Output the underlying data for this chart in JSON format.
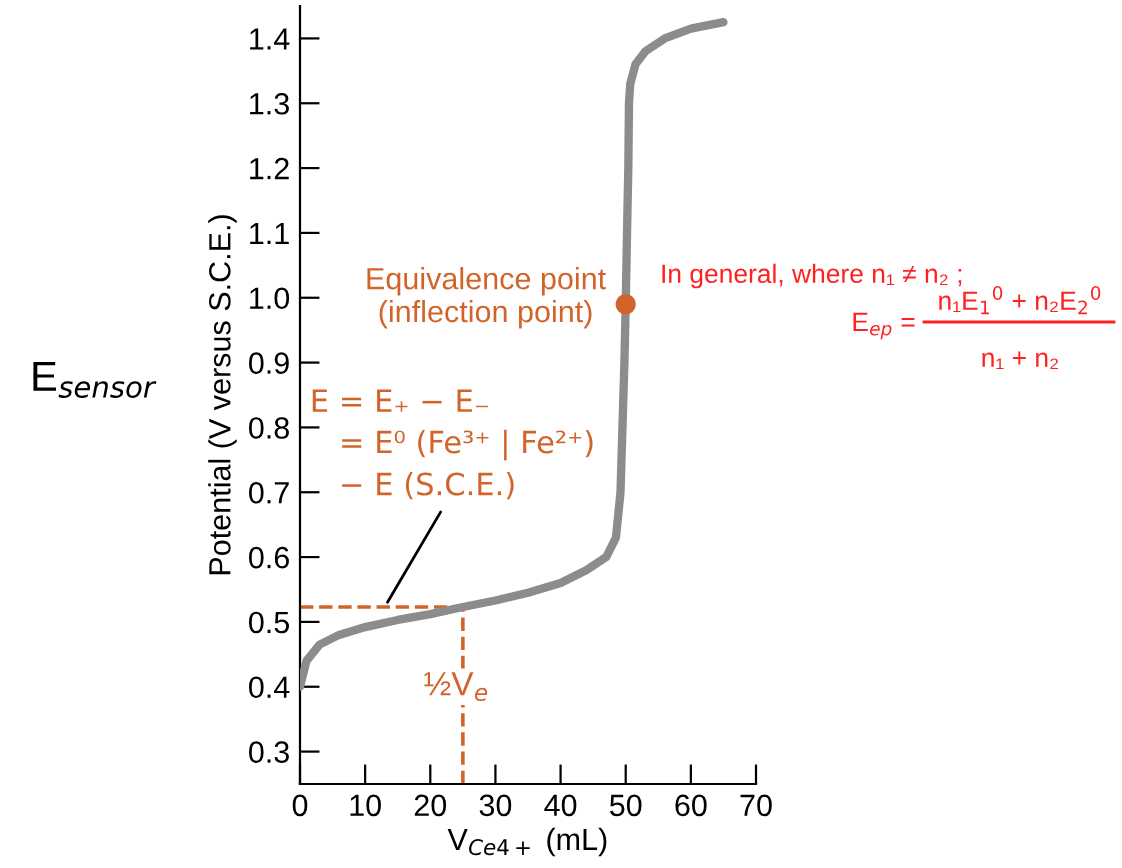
{
  "chart_data": {
    "type": "line",
    "xlabel": "V$_{Ce4+}$ (mL)",
    "ylabel": "Potential (V versus S.C.E.)",
    "xlim": [
      0,
      70
    ],
    "ylim": [
      0.25,
      1.45
    ],
    "xticks": [
      0,
      10,
      20,
      30,
      40,
      50,
      60,
      70
    ],
    "yticks": [
      0.3,
      0.4,
      0.5,
      0.6,
      0.7,
      0.8,
      0.9,
      {
        "value": 1.0,
        "label": "1.0"
      },
      1.1,
      1.2,
      1.3,
      1.4
    ],
    "grid": false,
    "legend": false,
    "series": [
      {
        "color": "#8c8c8c",
        "x": [
          0,
          1,
          3,
          6,
          10,
          15,
          20,
          25,
          30,
          35,
          40,
          44,
          47,
          48.5,
          49.2,
          49.5,
          49.8,
          50,
          50.2,
          50.4,
          50.5,
          50.7,
          51.5,
          53,
          56,
          60,
          65
        ],
        "values": [
          0.4,
          0.44,
          0.465,
          0.48,
          0.492,
          0.503,
          0.512,
          0.523,
          0.533,
          0.545,
          0.56,
          0.58,
          0.6,
          0.63,
          0.7,
          0.8,
          0.9,
          0.99,
          1.1,
          1.2,
          1.3,
          1.33,
          1.36,
          1.38,
          1.4,
          1.415,
          1.425
        ]
      },
      {
        "type": "scatter",
        "marker": "circle",
        "color": "#d2642a",
        "x": [
          50
        ],
        "values": [
          0.99
        ]
      }
    ],
    "ref_lines": [
      {
        "axis": "y",
        "value": 0.523,
        "color": "#d2642a",
        "line_style": "dashed"
      },
      {
        "axis": "x",
        "value": 25,
        "label": "½V$_{e}$",
        "color": "#d2642a",
        "line_style": "dashed"
      }
    ],
    "annotations": [
      {
        "text": "Equivalence point\n(inflection point)",
        "x": 50,
        "y": 0.99
      },
      {
        "text": "E = E₊ − E₋\n   = E⁰ (Fe³⁺ | Fe²⁺)\n   − E (S.C.E.)",
        "x": 13,
        "y": 0.523
      },
      "In general, where n₁ ≠ n₂ ;",
      "E$_{ep}$ =",
      "n₁E$_{1}$$^{0}$ + n₂E$_{2}$$^{0}$",
      "n₁ + n₂",
      "E$_{sensor}$"
    ]
  }
}
